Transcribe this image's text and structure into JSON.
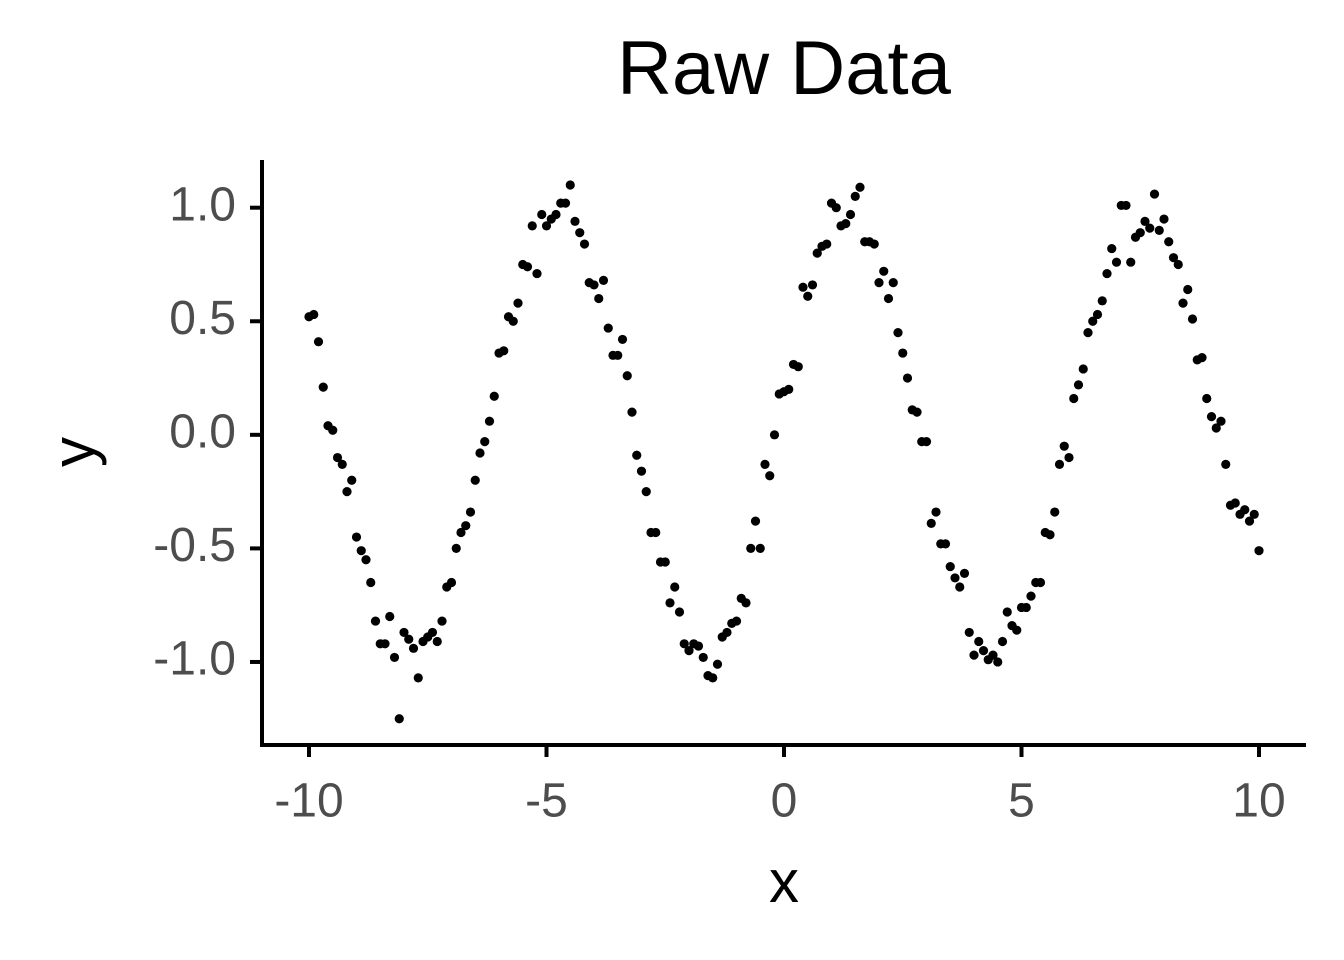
{
  "chart_data": {
    "type": "scatter",
    "title": "Raw Data",
    "x_label": "x",
    "y_label": "y",
    "x": [
      -10,
      -9.9,
      -9.8,
      -9.7,
      -9.6,
      -9.5,
      -9.4,
      -9.3,
      -9.2,
      -9.1,
      -9,
      -8.9,
      -8.8,
      -8.7,
      -8.6,
      -8.5,
      -8.4,
      -8.3,
      -8.2,
      -8.1,
      -8,
      -7.9,
      -7.8,
      -7.7,
      -7.6,
      -7.5,
      -7.4,
      -7.3,
      -7.2,
      -7.1,
      -7,
      -6.9,
      -6.8,
      -6.7,
      -6.6,
      -6.5,
      -6.4,
      -6.3,
      -6.2,
      -6.1,
      -6,
      -5.9,
      -5.8,
      -5.7,
      -5.6,
      -5.5,
      -5.4,
      -5.3,
      -5.2,
      -5.1,
      -5,
      -4.9,
      -4.8,
      -4.7,
      -4.6,
      -4.5,
      -4.4,
      -4.3,
      -4.2,
      -4.1,
      -4,
      -3.9,
      -3.8,
      -3.7,
      -3.6,
      -3.5,
      -3.4,
      -3.3,
      -3.2,
      -3.1,
      -3,
      -2.9,
      -2.8,
      -2.7,
      -2.6,
      -2.5,
      -2.4,
      -2.3,
      -2.2,
      -2.1,
      -2,
      -1.9,
      -1.8,
      -1.7,
      -1.6,
      -1.5,
      -1.4,
      -1.3,
      -1.2,
      -1.1,
      -1,
      -0.9,
      -0.8,
      -0.7,
      -0.6,
      -0.5,
      -0.4,
      -0.3,
      -0.2,
      -0.1,
      0,
      0.1,
      0.2,
      0.3,
      0.4,
      0.5,
      0.6,
      0.7,
      0.8,
      0.9,
      1,
      1.1,
      1.2,
      1.3,
      1.4,
      1.5,
      1.6,
      1.7,
      1.8,
      1.9,
      2,
      2.1,
      2.2,
      2.3,
      2.4,
      2.5,
      2.6,
      2.7,
      2.8,
      2.9,
      3,
      3.1,
      3.2,
      3.3,
      3.4,
      3.5,
      3.6,
      3.7,
      3.8,
      3.9,
      4,
      4.1,
      4.2,
      4.3,
      4.4,
      4.5,
      4.6,
      4.7,
      4.8,
      4.9,
      5,
      5.1,
      5.2,
      5.3,
      5.4,
      5.5,
      5.6,
      5.7,
      5.8,
      5.9,
      6,
      6.1,
      6.2,
      6.3,
      6.4,
      6.5,
      6.6,
      6.7,
      6.8,
      6.9,
      7,
      7.1,
      7.2,
      7.3,
      7.4,
      7.5,
      7.6,
      7.7,
      7.8,
      7.9,
      8,
      8.1,
      8.2,
      8.3,
      8.4,
      8.5,
      8.6,
      8.7,
      8.8,
      8.9,
      9,
      9.1,
      9.2,
      9.3,
      9.4,
      9.5,
      9.6,
      9.7,
      9.8,
      9.9,
      10
    ],
    "series": [
      {
        "color": "#000000",
        "values": [
          0.52,
          0.53,
          0.41,
          0.21,
          0.04,
          0.02,
          -0.1,
          -0.13,
          -0.25,
          -0.2,
          -0.45,
          -0.51,
          -0.55,
          -0.65,
          -0.82,
          -0.92,
          -0.92,
          -0.8,
          -0.98,
          -1.25,
          -0.87,
          -0.9,
          -0.94,
          -1.07,
          -0.91,
          -0.89,
          -0.87,
          -0.91,
          -0.82,
          -0.67,
          -0.65,
          -0.5,
          -0.43,
          -0.4,
          -0.34,
          -0.2,
          -0.08,
          -0.03,
          0.06,
          0.17,
          0.36,
          0.37,
          0.52,
          0.5,
          0.58,
          0.75,
          0.74,
          0.92,
          0.71,
          0.97,
          0.92,
          0.95,
          0.97,
          1.02,
          1.02,
          1.1,
          0.94,
          0.89,
          0.84,
          0.67,
          0.66,
          0.6,
          0.68,
          0.47,
          0.35,
          0.35,
          0.42,
          0.26,
          0.1,
          -0.09,
          -0.16,
          -0.25,
          -0.43,
          -0.43,
          -0.56,
          -0.56,
          -0.74,
          -0.67,
          -0.78,
          -0.92,
          -0.95,
          -0.92,
          -0.93,
          -0.98,
          -1.06,
          -1.07,
          -1.01,
          -0.89,
          -0.87,
          -0.83,
          -0.82,
          -0.72,
          -0.74,
          -0.5,
          -0.38,
          -0.5,
          -0.13,
          -0.18,
          0.0,
          0.18,
          0.19,
          0.2,
          0.31,
          0.3,
          0.65,
          0.61,
          0.66,
          0.8,
          0.83,
          0.84,
          1.02,
          1.0,
          0.92,
          0.93,
          0.97,
          1.05,
          1.09,
          0.85,
          0.85,
          0.84,
          0.67,
          0.72,
          0.6,
          0.67,
          0.45,
          0.36,
          0.25,
          0.11,
          0.1,
          -0.03,
          -0.03,
          -0.39,
          -0.34,
          -0.48,
          -0.48,
          -0.58,
          -0.63,
          -0.67,
          -0.61,
          -0.87,
          -0.97,
          -0.91,
          -0.95,
          -0.99,
          -0.97,
          -1.0,
          -0.91,
          -0.78,
          -0.84,
          -0.86,
          -0.76,
          -0.76,
          -0.71,
          -0.65,
          -0.65,
          -0.43,
          -0.44,
          -0.34,
          -0.13,
          -0.05,
          -0.1,
          0.16,
          0.22,
          0.29,
          0.45,
          0.5,
          0.53,
          0.59,
          0.71,
          0.82,
          0.76,
          1.01,
          1.01,
          0.76,
          0.87,
          0.89,
          0.94,
          0.91,
          1.06,
          0.9,
          0.95,
          0.85,
          0.78,
          0.75,
          0.58,
          0.64,
          0.51,
          0.33,
          0.34,
          0.16,
          0.08,
          0.03,
          0.06,
          -0.13,
          -0.31,
          -0.3,
          -0.35,
          -0.33,
          -0.38,
          -0.35,
          -0.51
        ]
      }
    ],
    "xlim": [
      -11,
      11
    ],
    "ylim": [
      -1.37,
      1.21
    ],
    "xticks": [
      -10,
      -5,
      0,
      5,
      10
    ],
    "yticks": [
      {
        "value": -1,
        "label": "-1.0"
      },
      {
        "value": -0.5,
        "label": "-0.5"
      },
      {
        "value": 0,
        "label": "0.0"
      },
      {
        "value": 0.5,
        "label": "0.5"
      },
      {
        "value": 1,
        "label": "1.0"
      }
    ],
    "grid": false
  }
}
